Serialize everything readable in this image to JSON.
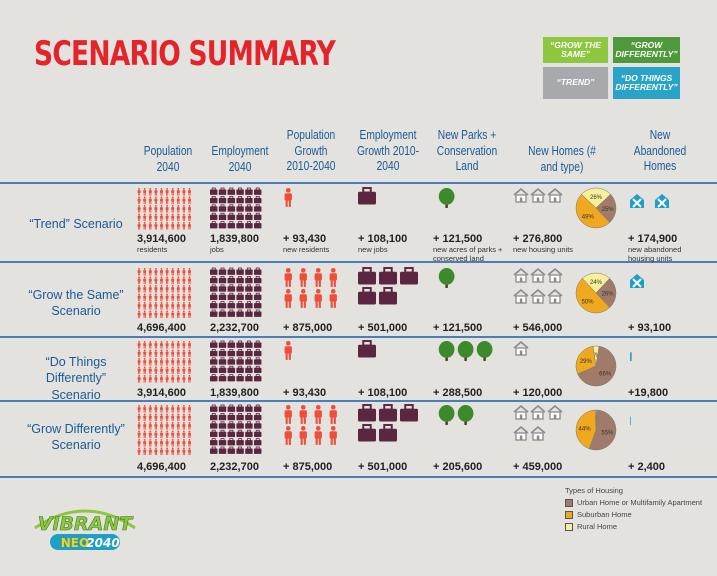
{
  "title": "SCENARIO SUMMARY",
  "legend_boxes": [
    {
      "label": "“GROW THE SAME”",
      "color": "#8dc63f"
    },
    {
      "label": "“GROW DIFFERENTLY”",
      "color": "#4e9a3a"
    },
    {
      "label": "“TREND”",
      "color": "#a7a9ac"
    },
    {
      "label": "“DO THINGS DIFFERENTLY”",
      "color": "#2aa3c8"
    }
  ],
  "columns": [
    "Population 2040",
    "Employment 2040",
    "Population Growth 2010-2040",
    "Employment Growth 2010-2040",
    "New Parks + Conservation Land",
    "New Homes (# and type)",
    "New Abandoned Homes"
  ],
  "colors": {
    "person": "#ef4e3a",
    "job": "#5b2640",
    "tree": "#3d8a2c",
    "house": "#8a8a8a",
    "abandoned": "#1d9fc7",
    "urban": "#a17b6a",
    "suburban": "#f0a81f",
    "rural": "#f7ef9a",
    "heading": "#1a5a96",
    "title": "#e3242b"
  },
  "chart_data": {
    "type": "table",
    "rows": [
      {
        "label": "“Trend” Scenario",
        "population_2040": "3,914,600",
        "population_2040_unit": "residents",
        "employment_2040": "1,839,800",
        "employment_2040_unit": "jobs",
        "population_growth": "+ 93,430",
        "population_growth_unit": "new residents",
        "employment_growth": "+ 108,100",
        "employment_growth_unit": "new jobs",
        "new_parks": "+ 121,500",
        "new_parks_unit": "new acres of parks + conserved land",
        "new_homes": "+ 276,800",
        "new_homes_unit": "new housing units",
        "new_abandoned": "+ 174,900",
        "new_abandoned_unit": "new abandoned housing units",
        "housing_mix": {
          "urban": 25,
          "suburban": 49,
          "rural": 26
        },
        "icons": {
          "pop_growth": 1,
          "emp_growth": 1,
          "parks": 1,
          "homes": 3,
          "abandoned": 2
        }
      },
      {
        "label": "“Grow the Same” Scenario",
        "population_2040": "4,696,400",
        "employment_2040": "2,232,700",
        "population_growth": "+ 875,000",
        "employment_growth": "+ 501,000",
        "new_parks": "+ 121,500",
        "new_homes": "+ 546,000",
        "new_abandoned": "+ 93,100",
        "housing_mix": {
          "urban": 26,
          "suburban": 50,
          "rural": 24
        },
        "icons": {
          "pop_growth": 8,
          "emp_growth": 5,
          "parks": 1,
          "homes": 6,
          "abandoned": 1
        }
      },
      {
        "label": "“Do Things Differently” Scenario",
        "population_2040": "3,914,600",
        "employment_2040": "1,839,800",
        "population_growth": "+ 93,430",
        "employment_growth": "+ 108,100",
        "new_parks": "+ 288,500",
        "new_homes": "+ 120,000",
        "new_abandoned": "+19,800",
        "housing_mix": {
          "urban": 66,
          "suburban": 29,
          "rural": 5
        },
        "icons": {
          "pop_growth": 1,
          "emp_growth": 1,
          "parks": 3,
          "homes": 1,
          "abandoned": 0.2
        }
      },
      {
        "label": "“Grow Differently” Scenario",
        "population_2040": "4,696,400",
        "employment_2040": "2,232,700",
        "population_growth": "+ 875,000",
        "employment_growth": "+ 501,000",
        "new_parks": "+ 205,600",
        "new_homes": "+ 459,000",
        "new_abandoned": "+ 2,400",
        "housing_mix": {
          "urban": 55,
          "suburban": 44,
          "rural": 1
        },
        "icons": {
          "pop_growth": 8,
          "emp_growth": 5,
          "parks": 2,
          "homes": 5,
          "abandoned": 0.05
        }
      }
    ]
  },
  "housing_legend": {
    "title": "Types of Housing",
    "items": [
      {
        "label": "Urban Home or Multifamily Apartment",
        "color": "#a17b6a"
      },
      {
        "label": "Suburban Home",
        "color": "#f0a81f"
      },
      {
        "label": "Rural Home",
        "color": "#f7ef9a"
      }
    ]
  },
  "logo": {
    "line1": "VIBRANT",
    "line2a": "NEO",
    "line2b": "2040"
  }
}
